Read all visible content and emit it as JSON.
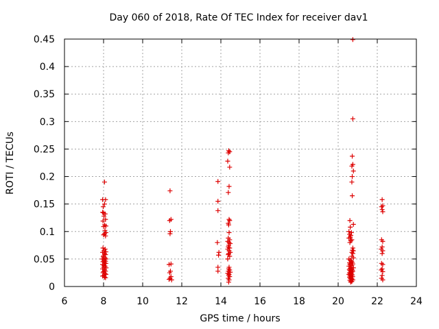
{
  "chart_data": {
    "type": "scatter",
    "title": "Day 060 of 2018, Rate Of TEC Index for receiver dav1",
    "xlabel": "GPS time / hours",
    "ylabel": "ROTI / TECUs",
    "xlim": [
      6,
      24
    ],
    "ylim": [
      0,
      0.45
    ],
    "xticks": [
      6,
      8,
      10,
      12,
      14,
      16,
      18,
      20,
      22,
      24
    ],
    "yticks": [
      0,
      0.05,
      0.1,
      0.15,
      0.2,
      0.25,
      0.3,
      0.35,
      0.4,
      0.45
    ],
    "ytick_labels": [
      "0",
      "0.05",
      "0.1",
      "0.15",
      "0.2",
      "0.25",
      "0.3",
      "0.35",
      "0.4",
      "0.45"
    ],
    "grid": true,
    "marker": "+",
    "color": "#dd0000",
    "series": [
      {
        "name": "dav1",
        "points": [
          [
            8.05,
            0.19
          ],
          [
            7.95,
            0.158
          ],
          [
            8.1,
            0.158
          ],
          [
            8.05,
            0.15
          ],
          [
            7.98,
            0.145
          ],
          [
            7.95,
            0.135
          ],
          [
            8.0,
            0.134
          ],
          [
            8.08,
            0.132
          ],
          [
            8.02,
            0.128
          ],
          [
            8.1,
            0.122
          ],
          [
            7.97,
            0.119
          ],
          [
            8.05,
            0.112
          ],
          [
            8.12,
            0.11
          ],
          [
            8.0,
            0.109
          ],
          [
            8.07,
            0.102
          ],
          [
            8.12,
            0.098
          ],
          [
            8.05,
            0.096
          ],
          [
            8.0,
            0.094
          ],
          [
            8.1,
            0.092
          ],
          [
            7.97,
            0.07
          ],
          [
            8.08,
            0.068
          ],
          [
            8.02,
            0.065
          ],
          [
            8.12,
            0.063
          ],
          [
            7.95,
            0.062
          ],
          [
            8.05,
            0.06
          ],
          [
            8.1,
            0.058
          ],
          [
            8.0,
            0.056
          ],
          [
            7.98,
            0.054
          ],
          [
            8.07,
            0.052
          ],
          [
            8.13,
            0.05
          ],
          [
            7.93,
            0.05
          ],
          [
            8.03,
            0.048
          ],
          [
            8.1,
            0.046
          ],
          [
            7.97,
            0.045
          ],
          [
            8.05,
            0.043
          ],
          [
            8.12,
            0.042
          ],
          [
            7.95,
            0.04
          ],
          [
            8.02,
            0.038
          ],
          [
            8.08,
            0.037
          ],
          [
            8.0,
            0.035
          ],
          [
            8.13,
            0.034
          ],
          [
            7.95,
            0.032
          ],
          [
            8.05,
            0.03
          ],
          [
            8.1,
            0.028
          ],
          [
            8.0,
            0.027
          ],
          [
            7.97,
            0.025
          ],
          [
            8.07,
            0.024
          ],
          [
            8.12,
            0.022
          ],
          [
            8.02,
            0.02
          ],
          [
            7.95,
            0.019
          ],
          [
            8.05,
            0.017
          ],
          [
            8.1,
            0.016
          ],
          [
            11.4,
            0.174
          ],
          [
            11.45,
            0.122
          ],
          [
            11.38,
            0.12
          ],
          [
            11.42,
            0.1
          ],
          [
            11.4,
            0.096
          ],
          [
            11.45,
            0.041
          ],
          [
            11.35,
            0.04
          ],
          [
            11.42,
            0.028
          ],
          [
            11.38,
            0.025
          ],
          [
            11.45,
            0.018
          ],
          [
            11.4,
            0.015
          ],
          [
            11.35,
            0.013
          ],
          [
            11.48,
            0.012
          ],
          [
            13.85,
            0.191
          ],
          [
            13.85,
            0.155
          ],
          [
            13.85,
            0.138
          ],
          [
            13.82,
            0.08
          ],
          [
            13.9,
            0.062
          ],
          [
            13.88,
            0.057
          ],
          [
            13.85,
            0.035
          ],
          [
            13.85,
            0.028
          ],
          [
            14.4,
            0.247
          ],
          [
            14.45,
            0.245
          ],
          [
            14.38,
            0.243
          ],
          [
            14.35,
            0.228
          ],
          [
            14.45,
            0.217
          ],
          [
            14.42,
            0.182
          ],
          [
            14.38,
            0.171
          ],
          [
            14.42,
            0.122
          ],
          [
            14.45,
            0.12
          ],
          [
            14.38,
            0.115
          ],
          [
            14.4,
            0.112
          ],
          [
            14.42,
            0.098
          ],
          [
            14.38,
            0.088
          ],
          [
            14.45,
            0.085
          ],
          [
            14.35,
            0.082
          ],
          [
            14.42,
            0.08
          ],
          [
            14.48,
            0.078
          ],
          [
            14.4,
            0.075
          ],
          [
            14.38,
            0.072
          ],
          [
            14.45,
            0.07
          ],
          [
            14.35,
            0.068
          ],
          [
            14.42,
            0.065
          ],
          [
            14.48,
            0.062
          ],
          [
            14.4,
            0.06
          ],
          [
            14.38,
            0.058
          ],
          [
            14.45,
            0.055
          ],
          [
            14.35,
            0.05
          ],
          [
            14.42,
            0.035
          ],
          [
            14.4,
            0.032
          ],
          [
            14.45,
            0.03
          ],
          [
            14.38,
            0.028
          ],
          [
            14.48,
            0.026
          ],
          [
            14.35,
            0.024
          ],
          [
            14.42,
            0.022
          ],
          [
            14.4,
            0.02
          ],
          [
            14.45,
            0.018
          ],
          [
            14.38,
            0.015
          ],
          [
            14.42,
            0.012
          ],
          [
            14.4,
            0.008
          ],
          [
            20.75,
            0.449
          ],
          [
            20.75,
            0.305
          ],
          [
            20.72,
            0.237
          ],
          [
            20.75,
            0.222
          ],
          [
            20.7,
            0.219
          ],
          [
            20.78,
            0.21
          ],
          [
            20.72,
            0.2
          ],
          [
            20.7,
            0.19
          ],
          [
            20.72,
            0.165
          ],
          [
            20.6,
            0.12
          ],
          [
            20.78,
            0.113
          ],
          [
            20.62,
            0.108
          ],
          [
            20.55,
            0.1
          ],
          [
            20.68,
            0.098
          ],
          [
            20.58,
            0.095
          ],
          [
            20.65,
            0.093
          ],
          [
            20.62,
            0.09
          ],
          [
            20.55,
            0.088
          ],
          [
            20.7,
            0.085
          ],
          [
            20.65,
            0.083
          ],
          [
            20.6,
            0.08
          ],
          [
            20.75,
            0.07
          ],
          [
            20.72,
            0.066
          ],
          [
            20.78,
            0.065
          ],
          [
            20.7,
            0.062
          ],
          [
            20.75,
            0.06
          ],
          [
            20.7,
            0.055
          ],
          [
            20.78,
            0.052
          ],
          [
            20.55,
            0.05
          ],
          [
            20.62,
            0.048
          ],
          [
            20.68,
            0.046
          ],
          [
            20.72,
            0.044
          ],
          [
            20.58,
            0.043
          ],
          [
            20.65,
            0.042
          ],
          [
            20.75,
            0.041
          ],
          [
            20.6,
            0.04
          ],
          [
            20.7,
            0.038
          ],
          [
            20.55,
            0.037
          ],
          [
            20.65,
            0.035
          ],
          [
            20.78,
            0.034
          ],
          [
            20.62,
            0.033
          ],
          [
            20.68,
            0.032
          ],
          [
            20.57,
            0.031
          ],
          [
            20.72,
            0.03
          ],
          [
            20.6,
            0.029
          ],
          [
            20.75,
            0.028
          ],
          [
            20.65,
            0.027
          ],
          [
            20.7,
            0.026
          ],
          [
            20.58,
            0.025
          ],
          [
            20.62,
            0.024
          ],
          [
            20.68,
            0.023
          ],
          [
            20.55,
            0.022
          ],
          [
            20.72,
            0.021
          ],
          [
            20.6,
            0.02
          ],
          [
            20.66,
            0.019
          ],
          [
            20.74,
            0.018
          ],
          [
            20.58,
            0.017
          ],
          [
            20.64,
            0.016
          ],
          [
            20.7,
            0.015
          ],
          [
            20.62,
            0.014
          ],
          [
            20.68,
            0.013
          ],
          [
            20.75,
            0.012
          ],
          [
            20.6,
            0.011
          ],
          [
            20.66,
            0.01
          ],
          [
            20.7,
            0.009
          ],
          [
            20.64,
            0.008
          ],
          [
            22.25,
            0.158
          ],
          [
            22.28,
            0.147
          ],
          [
            22.22,
            0.145
          ],
          [
            22.25,
            0.14
          ],
          [
            22.28,
            0.136
          ],
          [
            22.22,
            0.085
          ],
          [
            22.28,
            0.082
          ],
          [
            22.25,
            0.072
          ],
          [
            22.2,
            0.068
          ],
          [
            22.28,
            0.065
          ],
          [
            22.25,
            0.06
          ],
          [
            22.22,
            0.042
          ],
          [
            22.28,
            0.04
          ],
          [
            22.25,
            0.032
          ],
          [
            22.2,
            0.03
          ],
          [
            22.28,
            0.027
          ],
          [
            22.25,
            0.02
          ],
          [
            22.22,
            0.015
          ],
          [
            22.28,
            0.012
          ]
        ]
      }
    ]
  }
}
